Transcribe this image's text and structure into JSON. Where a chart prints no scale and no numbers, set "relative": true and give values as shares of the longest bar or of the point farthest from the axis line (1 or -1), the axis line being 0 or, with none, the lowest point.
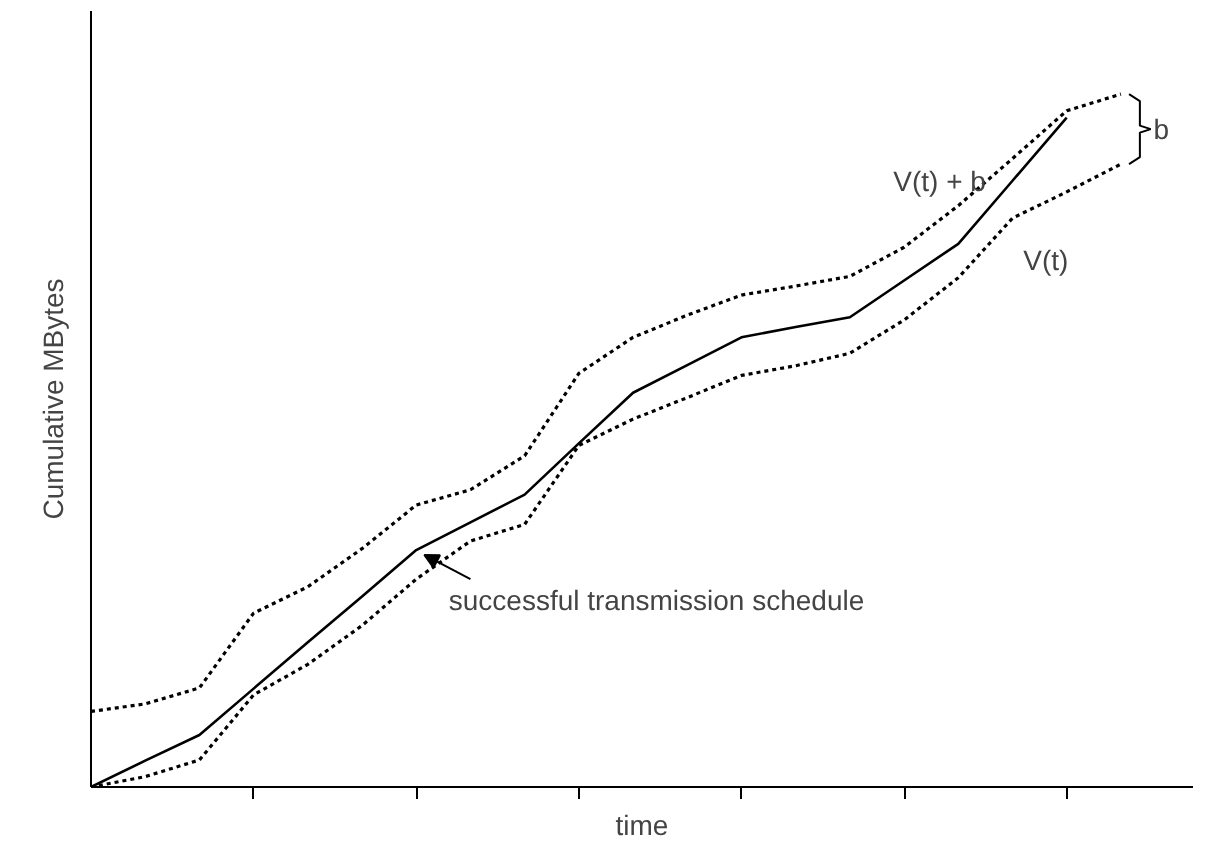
{
  "chart_data": {
    "type": "line",
    "relative": true,
    "xlabel": "time",
    "ylabel": "Cumulative MBytes",
    "grid": false,
    "marker": "none",
    "categories": [
      null,
      null,
      null,
      null,
      null,
      null,
      null,
      null,
      null,
      null,
      null,
      null,
      null,
      null,
      null,
      null,
      null,
      null,
      null,
      null
    ],
    "series": [
      {
        "name": "successful transmission schedule",
        "color": "#000000",
        "line_style": "solid",
        "values": [
          0,
          0.038,
          0.075,
          0.142,
          0.209,
          0.275,
          0.342,
          0.382,
          0.422,
          0.496,
          0.569,
          0.609,
          0.649,
          0.664,
          0.678,
          0.731,
          0.784,
          0.875,
          0.966,
          null
        ]
      },
      {
        "name": "V(t) + b",
        "color": "#000000",
        "line_style": "dotted",
        "values": [
          0.109,
          0.12,
          0.143,
          0.251,
          0.289,
          0.344,
          0.407,
          0.429,
          0.478,
          0.597,
          0.649,
          0.681,
          0.71,
          0.723,
          0.737,
          0.779,
          0.839,
          0.907,
          0.976,
          1
        ]
      },
      {
        "name": "V(t)",
        "color": "#000000",
        "line_style": "dotted",
        "values": [
          0,
          0.015,
          0.039,
          0.133,
          0.177,
          0.233,
          0.3,
          0.355,
          0.379,
          0.493,
          0.531,
          0.562,
          0.594,
          0.608,
          0.626,
          0.674,
          0.735,
          0.821,
          0.859,
          0.899
        ]
      }
    ],
    "annotations": [
      "b"
    ]
  }
}
